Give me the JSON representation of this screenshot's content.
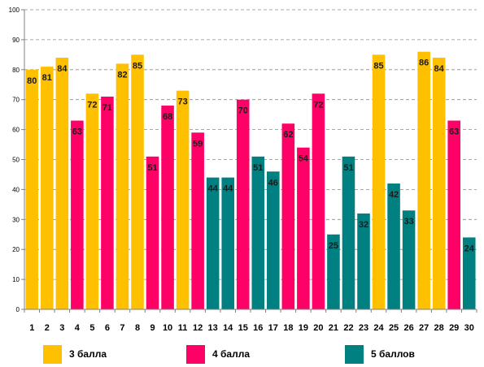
{
  "chart_data": {
    "type": "bar",
    "categories": [
      "1",
      "2",
      "3",
      "4",
      "5",
      "6",
      "7",
      "8",
      "9",
      "10",
      "11",
      "12",
      "13",
      "14",
      "15",
      "16",
      "17",
      "18",
      "19",
      "20",
      "21",
      "22",
      "23",
      "24",
      "25",
      "26",
      "27",
      "28",
      "29",
      "30"
    ],
    "values": [
      80,
      81,
      84,
      63,
      72,
      71,
      82,
      85,
      51,
      68,
      73,
      59,
      44,
      44,
      70,
      51,
      46,
      62,
      54,
      72,
      25,
      51,
      32,
      85,
      42,
      33,
      86,
      84,
      63,
      24
    ],
    "series_index": [
      0,
      0,
      0,
      1,
      0,
      1,
      0,
      0,
      1,
      1,
      0,
      1,
      2,
      2,
      1,
      2,
      2,
      1,
      1,
      1,
      2,
      2,
      2,
      0,
      2,
      2,
      0,
      0,
      1,
      2
    ],
    "series": [
      {
        "name": "3 балла",
        "color": "#FFC000"
      },
      {
        "name": "4 балла",
        "color": "#FF0066"
      },
      {
        "name": "5 баллов",
        "color": "#008080"
      }
    ],
    "ylim": [
      0,
      100
    ],
    "yticks": [
      0,
      10,
      20,
      30,
      40,
      50,
      60,
      70,
      80,
      90,
      100
    ],
    "grid": "dashed horizontal",
    "legend_position": "bottom"
  }
}
